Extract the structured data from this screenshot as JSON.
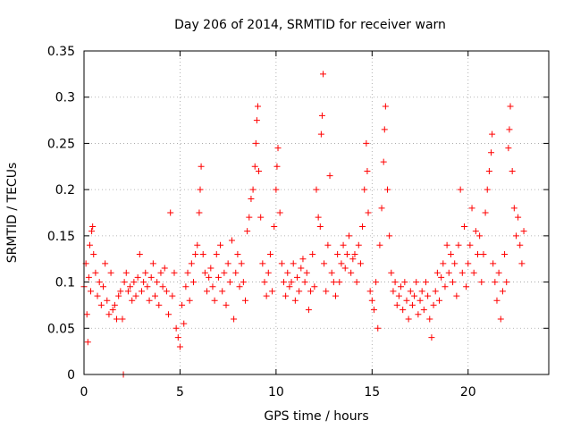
{
  "chart_data": {
    "type": "scatter",
    "title": "Day 206 of 2014, SRMTID for receiver warn",
    "xlabel": "GPS time / hours",
    "ylabel": "SRMTID / TECUs",
    "xlim": [
      0,
      24.2
    ],
    "ylim": [
      0,
      0.35
    ],
    "x_ticks": [
      0,
      5,
      10,
      15,
      20
    ],
    "x_tick_labels": [
      "0",
      "5",
      "10",
      "15",
      "20"
    ],
    "y_ticks": [
      0,
      0.05,
      0.1,
      0.15,
      0.2,
      0.25,
      0.3,
      0.35
    ],
    "y_tick_labels": [
      "0",
      "0.05",
      "0.1",
      "0.15",
      "0.2",
      "0.25",
      "0.3",
      "0.35"
    ],
    "grid": true,
    "marker": "+",
    "series": [
      {
        "name": "SRMTID",
        "color": "#ff0000",
        "points": [
          [
            0.0,
            0.095
          ],
          [
            0.1,
            0.12
          ],
          [
            0.15,
            0.065
          ],
          [
            0.2,
            0.035
          ],
          [
            0.25,
            0.105
          ],
          [
            0.3,
            0.14
          ],
          [
            0.35,
            0.09
          ],
          [
            0.4,
            0.155
          ],
          [
            0.45,
            0.16
          ],
          [
            0.5,
            0.13
          ],
          [
            0.6,
            0.11
          ],
          [
            0.7,
            0.085
          ],
          [
            0.8,
            0.1
          ],
          [
            0.9,
            0.075
          ],
          [
            1.0,
            0.095
          ],
          [
            1.1,
            0.12
          ],
          [
            1.2,
            0.08
          ],
          [
            1.3,
            0.065
          ],
          [
            1.4,
            0.11
          ],
          [
            1.5,
            0.07
          ],
          [
            1.6,
            0.075
          ],
          [
            1.7,
            0.06
          ],
          [
            1.8,
            0.085
          ],
          [
            1.9,
            0.09
          ],
          [
            2.0,
            0.06
          ],
          [
            2.05,
            0.0
          ],
          [
            2.1,
            0.1
          ],
          [
            2.2,
            0.11
          ],
          [
            2.3,
            0.09
          ],
          [
            2.4,
            0.095
          ],
          [
            2.5,
            0.08
          ],
          [
            2.6,
            0.1
          ],
          [
            2.7,
            0.085
          ],
          [
            2.8,
            0.105
          ],
          [
            2.9,
            0.13
          ],
          [
            3.0,
            0.09
          ],
          [
            3.1,
            0.1
          ],
          [
            3.2,
            0.11
          ],
          [
            3.3,
            0.095
          ],
          [
            3.4,
            0.08
          ],
          [
            3.5,
            0.105
          ],
          [
            3.6,
            0.12
          ],
          [
            3.7,
            0.085
          ],
          [
            3.8,
            0.1
          ],
          [
            3.9,
            0.075
          ],
          [
            4.0,
            0.11
          ],
          [
            4.1,
            0.095
          ],
          [
            4.2,
            0.115
          ],
          [
            4.3,
            0.09
          ],
          [
            4.4,
            0.065
          ],
          [
            4.5,
            0.175
          ],
          [
            4.6,
            0.085
          ],
          [
            4.7,
            0.11
          ],
          [
            4.8,
            0.05
          ],
          [
            4.9,
            0.04
          ],
          [
            5.0,
            0.03
          ],
          [
            5.1,
            0.075
          ],
          [
            5.2,
            0.055
          ],
          [
            5.3,
            0.095
          ],
          [
            5.4,
            0.11
          ],
          [
            5.5,
            0.08
          ],
          [
            5.6,
            0.12
          ],
          [
            5.7,
            0.1
          ],
          [
            5.8,
            0.13
          ],
          [
            5.9,
            0.14
          ],
          [
            6.0,
            0.175
          ],
          [
            6.05,
            0.2
          ],
          [
            6.1,
            0.225
          ],
          [
            6.2,
            0.13
          ],
          [
            6.3,
            0.11
          ],
          [
            6.4,
            0.09
          ],
          [
            6.5,
            0.105
          ],
          [
            6.6,
            0.115
          ],
          [
            6.7,
            0.095
          ],
          [
            6.8,
            0.08
          ],
          [
            6.9,
            0.13
          ],
          [
            7.0,
            0.105
          ],
          [
            7.1,
            0.14
          ],
          [
            7.2,
            0.09
          ],
          [
            7.3,
            0.11
          ],
          [
            7.4,
            0.075
          ],
          [
            7.5,
            0.12
          ],
          [
            7.6,
            0.1
          ],
          [
            7.7,
            0.145
          ],
          [
            7.8,
            0.06
          ],
          [
            7.9,
            0.11
          ],
          [
            8.0,
            0.13
          ],
          [
            8.1,
            0.095
          ],
          [
            8.2,
            0.12
          ],
          [
            8.3,
            0.1
          ],
          [
            8.4,
            0.08
          ],
          [
            8.5,
            0.155
          ],
          [
            8.6,
            0.17
          ],
          [
            8.7,
            0.19
          ],
          [
            8.8,
            0.2
          ],
          [
            8.9,
            0.225
          ],
          [
            8.95,
            0.25
          ],
          [
            9.0,
            0.275
          ],
          [
            9.05,
            0.29
          ],
          [
            9.1,
            0.22
          ],
          [
            9.2,
            0.17
          ],
          [
            9.3,
            0.12
          ],
          [
            9.4,
            0.1
          ],
          [
            9.5,
            0.085
          ],
          [
            9.6,
            0.11
          ],
          [
            9.7,
            0.13
          ],
          [
            9.8,
            0.09
          ],
          [
            9.9,
            0.16
          ],
          [
            10.0,
            0.2
          ],
          [
            10.05,
            0.225
          ],
          [
            10.1,
            0.245
          ],
          [
            10.2,
            0.175
          ],
          [
            10.3,
            0.12
          ],
          [
            10.4,
            0.1
          ],
          [
            10.5,
            0.085
          ],
          [
            10.6,
            0.11
          ],
          [
            10.7,
            0.095
          ],
          [
            10.8,
            0.1
          ],
          [
            10.9,
            0.12
          ],
          [
            11.0,
            0.08
          ],
          [
            11.1,
            0.105
          ],
          [
            11.2,
            0.09
          ],
          [
            11.3,
            0.115
          ],
          [
            11.4,
            0.125
          ],
          [
            11.5,
            0.1
          ],
          [
            11.6,
            0.11
          ],
          [
            11.7,
            0.07
          ],
          [
            11.8,
            0.09
          ],
          [
            11.9,
            0.13
          ],
          [
            12.0,
            0.095
          ],
          [
            12.1,
            0.2
          ],
          [
            12.2,
            0.17
          ],
          [
            12.3,
            0.16
          ],
          [
            12.35,
            0.26
          ],
          [
            12.4,
            0.28
          ],
          [
            12.45,
            0.325
          ],
          [
            12.5,
            0.12
          ],
          [
            12.6,
            0.09
          ],
          [
            12.7,
            0.14
          ],
          [
            12.8,
            0.215
          ],
          [
            12.9,
            0.11
          ],
          [
            13.0,
            0.1
          ],
          [
            13.1,
            0.085
          ],
          [
            13.2,
            0.13
          ],
          [
            13.3,
            0.1
          ],
          [
            13.4,
            0.12
          ],
          [
            13.5,
            0.14
          ],
          [
            13.6,
            0.115
          ],
          [
            13.7,
            0.13
          ],
          [
            13.8,
            0.15
          ],
          [
            13.9,
            0.11
          ],
          [
            14.0,
            0.125
          ],
          [
            14.1,
            0.13
          ],
          [
            14.2,
            0.1
          ],
          [
            14.3,
            0.14
          ],
          [
            14.4,
            0.12
          ],
          [
            14.5,
            0.16
          ],
          [
            14.6,
            0.2
          ],
          [
            14.7,
            0.25
          ],
          [
            14.75,
            0.22
          ],
          [
            14.8,
            0.175
          ],
          [
            14.9,
            0.09
          ],
          [
            15.0,
            0.08
          ],
          [
            15.1,
            0.07
          ],
          [
            15.2,
            0.1
          ],
          [
            15.3,
            0.05
          ],
          [
            15.4,
            0.14
          ],
          [
            15.5,
            0.18
          ],
          [
            15.6,
            0.23
          ],
          [
            15.65,
            0.265
          ],
          [
            15.7,
            0.29
          ],
          [
            15.8,
            0.2
          ],
          [
            15.9,
            0.15
          ],
          [
            16.0,
            0.11
          ],
          [
            16.1,
            0.09
          ],
          [
            16.2,
            0.1
          ],
          [
            16.3,
            0.075
          ],
          [
            16.4,
            0.085
          ],
          [
            16.5,
            0.095
          ],
          [
            16.6,
            0.07
          ],
          [
            16.7,
            0.1
          ],
          [
            16.8,
            0.08
          ],
          [
            16.9,
            0.06
          ],
          [
            17.0,
            0.09
          ],
          [
            17.1,
            0.075
          ],
          [
            17.2,
            0.085
          ],
          [
            17.3,
            0.1
          ],
          [
            17.4,
            0.065
          ],
          [
            17.5,
            0.08
          ],
          [
            17.6,
            0.09
          ],
          [
            17.7,
            0.07
          ],
          [
            17.8,
            0.1
          ],
          [
            17.9,
            0.085
          ],
          [
            18.0,
            0.06
          ],
          [
            18.1,
            0.04
          ],
          [
            18.2,
            0.075
          ],
          [
            18.3,
            0.09
          ],
          [
            18.4,
            0.11
          ],
          [
            18.5,
            0.08
          ],
          [
            18.6,
            0.105
          ],
          [
            18.7,
            0.12
          ],
          [
            18.8,
            0.095
          ],
          [
            18.9,
            0.14
          ],
          [
            19.0,
            0.11
          ],
          [
            19.1,
            0.13
          ],
          [
            19.2,
            0.1
          ],
          [
            19.3,
            0.12
          ],
          [
            19.4,
            0.085
          ],
          [
            19.5,
            0.14
          ],
          [
            19.6,
            0.2
          ],
          [
            19.7,
            0.11
          ],
          [
            19.8,
            0.16
          ],
          [
            19.9,
            0.095
          ],
          [
            20.0,
            0.12
          ],
          [
            20.1,
            0.14
          ],
          [
            20.2,
            0.18
          ],
          [
            20.3,
            0.11
          ],
          [
            20.4,
            0.155
          ],
          [
            20.5,
            0.13
          ],
          [
            20.6,
            0.15
          ],
          [
            20.7,
            0.1
          ],
          [
            20.8,
            0.13
          ],
          [
            20.9,
            0.175
          ],
          [
            21.0,
            0.2
          ],
          [
            21.1,
            0.22
          ],
          [
            21.2,
            0.24
          ],
          [
            21.25,
            0.26
          ],
          [
            21.3,
            0.12
          ],
          [
            21.4,
            0.1
          ],
          [
            21.5,
            0.08
          ],
          [
            21.6,
            0.11
          ],
          [
            21.7,
            0.06
          ],
          [
            21.8,
            0.09
          ],
          [
            21.9,
            0.13
          ],
          [
            22.0,
            0.1
          ],
          [
            22.1,
            0.245
          ],
          [
            22.15,
            0.265
          ],
          [
            22.2,
            0.29
          ],
          [
            22.3,
            0.22
          ],
          [
            22.4,
            0.18
          ],
          [
            22.5,
            0.15
          ],
          [
            22.6,
            0.17
          ],
          [
            22.7,
            0.14
          ],
          [
            22.8,
            0.12
          ],
          [
            22.9,
            0.155
          ]
        ]
      }
    ]
  }
}
